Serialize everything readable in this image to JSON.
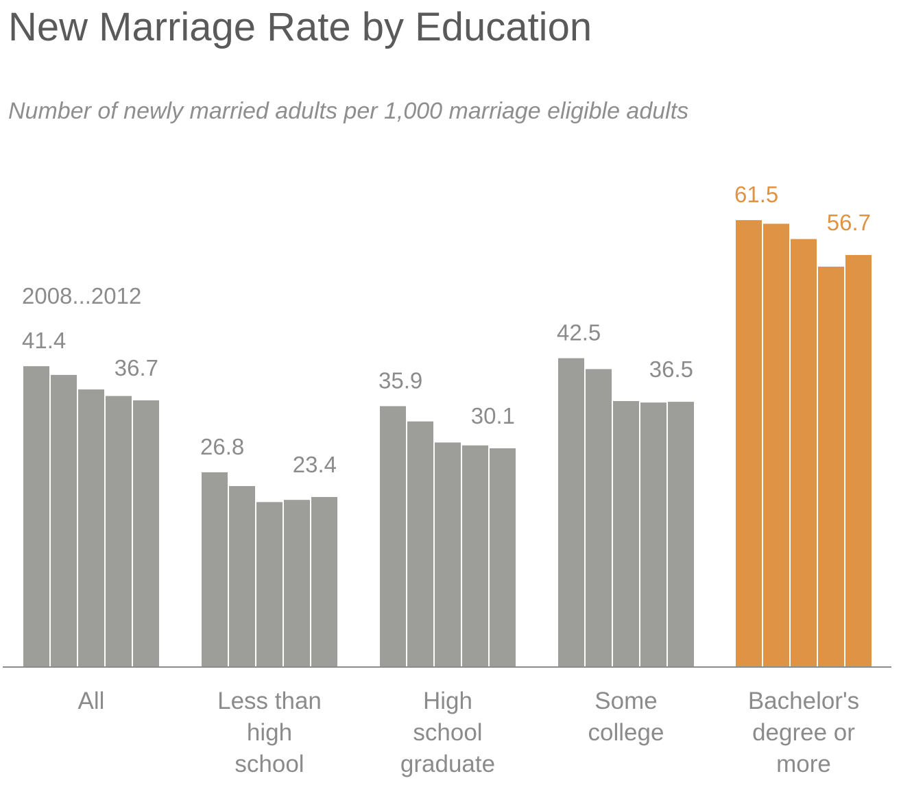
{
  "chart_data": {
    "type": "bar",
    "title": "New Marriage Rate by Education",
    "subtitle": "Number of newly married adults per 1,000 marriage eligible adults",
    "series_label": "2008...2012",
    "categories": [
      "All",
      "Less than high school",
      "High school graduate",
      "Some college",
      "Bachelor's degree or more"
    ],
    "category_label_lines": [
      [
        "All"
      ],
      [
        "Less than",
        "high",
        "school"
      ],
      [
        "High",
        "school",
        "graduate"
      ],
      [
        "Some",
        "college"
      ],
      [
        "Bachelor's",
        "degree or",
        "more"
      ]
    ],
    "years": [
      "2008",
      "2009",
      "2010",
      "2011",
      "2012"
    ],
    "values": [
      [
        41.4,
        40.2,
        38.2,
        37.3,
        36.7
      ],
      [
        26.8,
        24.9,
        22.7,
        23.0,
        23.4
      ],
      [
        35.9,
        33.8,
        30.9,
        30.5,
        30.1
      ],
      [
        42.5,
        41.0,
        36.6,
        36.4,
        36.5
      ],
      [
        61.5,
        61.0,
        58.9,
        55.1,
        56.7
      ]
    ],
    "data_labels": [
      [
        "41.4",
        "36.7"
      ],
      [
        "26.8",
        "23.4"
      ],
      [
        "35.9",
        "30.1"
      ],
      [
        "42.5",
        "36.5"
      ],
      [
        "61.5",
        "56.7"
      ]
    ],
    "highlight_category": "Bachelor's degree or more",
    "colors": {
      "bar": "#9d9d99",
      "highlight_bar": "#df9344",
      "label": "#8b8b8b",
      "highlight_label": "#df9344",
      "axis": "#8c8c8c",
      "title": "#5a5a5a",
      "subtitle": "#8e8e8e"
    },
    "xlabel": "",
    "ylabel": "",
    "ylim": [
      0,
      70
    ],
    "grid": false,
    "legend": "none"
  }
}
